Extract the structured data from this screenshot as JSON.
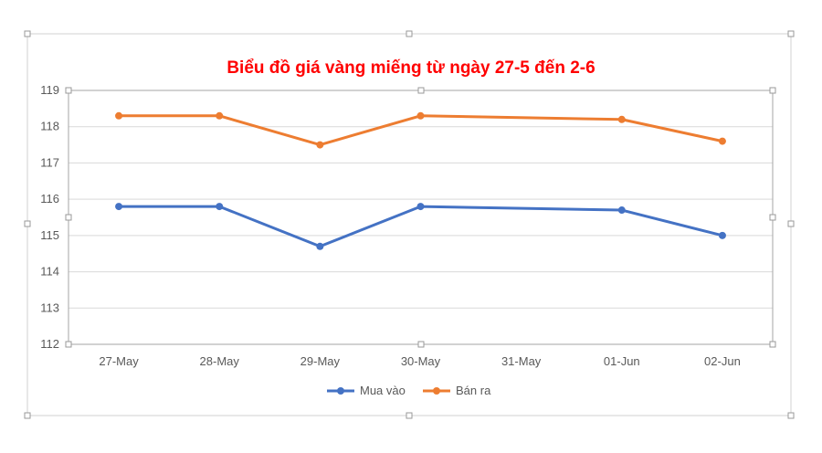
{
  "chart_data": {
    "type": "line",
    "title": "Biểu đồ giá vàng miếng từ ngày 27-5 đến 2-6",
    "categories": [
      "27-May",
      "28-May",
      "29-May",
      "30-May",
      "31-May",
      "01-Jun",
      "02-Jun"
    ],
    "series": [
      {
        "name": "Mua vào",
        "values": [
          115.8,
          115.8,
          114.7,
          115.8,
          null,
          115.7,
          115.0
        ],
        "color": "#4472C4"
      },
      {
        "name": "Bán ra",
        "values": [
          118.3,
          118.3,
          117.5,
          118.3,
          null,
          118.2,
          117.6
        ],
        "color": "#ED7D31"
      }
    ],
    "ylim": [
      112,
      119
    ],
    "yticks": [
      "112",
      "113",
      "114",
      "115",
      "116",
      "117",
      "118",
      "119"
    ],
    "grid": true,
    "legend_position": "bottom",
    "title_color": "#FF0000"
  }
}
